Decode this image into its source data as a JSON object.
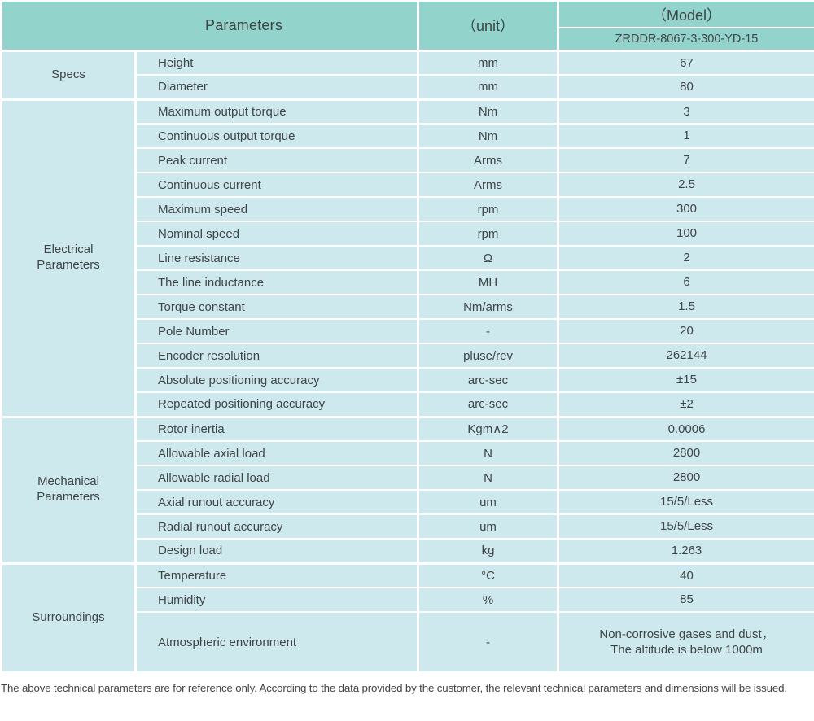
{
  "colors": {
    "header_bg": "#92d3cb",
    "body_bg": "#cde9ee",
    "border": "#ffffff",
    "text": "#3f4446"
  },
  "header": {
    "parameters_label": "Parameters",
    "unit_label": "（unit）",
    "model_label": "（Model）",
    "model_value": "ZRDDR-8067-3-300-YD-15"
  },
  "sections": [
    {
      "name": "Specs",
      "rows": [
        {
          "parameter": "Height",
          "unit": "mm",
          "value": "67"
        },
        {
          "parameter": "Diameter",
          "unit": "mm",
          "value": "80"
        }
      ]
    },
    {
      "name": "Electrical Parameters",
      "rows": [
        {
          "parameter": "Maximum output torque",
          "unit": "Nm",
          "value": "3"
        },
        {
          "parameter": "Continuous output torque",
          "unit": "Nm",
          "value": "1"
        },
        {
          "parameter": "Peak current",
          "unit": "Arms",
          "value": "7"
        },
        {
          "parameter": "Continuous current",
          "unit": "Arms",
          "value": "2.5"
        },
        {
          "parameter": "Maximum speed",
          "unit": "rpm",
          "value": "300"
        },
        {
          "parameter": "Nominal speed",
          "unit": "rpm",
          "value": "100"
        },
        {
          "parameter": "Line resistance",
          "unit": "Ω",
          "value": "2"
        },
        {
          "parameter": "The line inductance",
          "unit": "MH",
          "value": "6"
        },
        {
          "parameter": "Torque constant",
          "unit": "Nm/arms",
          "value": "1.5"
        },
        {
          "parameter": "Pole Number",
          "unit": "-",
          "value": "20"
        },
        {
          "parameter": "Encoder resolution",
          "unit": "pluse/rev",
          "value": "262144"
        },
        {
          "parameter": "Absolute positioning accuracy",
          "unit": "arc-sec",
          "value": "±15"
        },
        {
          "parameter": "Repeated positioning accuracy",
          "unit": "arc-sec",
          "value": "±2"
        }
      ]
    },
    {
      "name": "Mechanical Parameters",
      "rows": [
        {
          "parameter": "Rotor inertia",
          "unit": "Kgm∧2",
          "value": "0.0006"
        },
        {
          "parameter": "Allowable axial load",
          "unit": "N",
          "value": "2800"
        },
        {
          "parameter": "Allowable radial load",
          "unit": "N",
          "value": "2800"
        },
        {
          "parameter": "Axial runout accuracy",
          "unit": "um",
          "value": "15/5/Less"
        },
        {
          "parameter": "Radial runout accuracy",
          "unit": "um",
          "value": "15/5/Less"
        },
        {
          "parameter": "Design load",
          "unit": "kg",
          "value": "1.263"
        }
      ]
    },
    {
      "name": "Surroundings",
      "rows": [
        {
          "parameter": "Temperature",
          "unit": "°C",
          "value": "40"
        },
        {
          "parameter": "Humidity",
          "unit": "%",
          "value": "85"
        },
        {
          "parameter": "Atmospheric environment",
          "unit": "-",
          "value": [
            "Non-corrosive gases and dust，",
            "The altitude is below 1000m"
          ]
        }
      ]
    }
  ],
  "footer": {
    "note": "The above technical parameters are for reference only. According to the data provided by the customer, the relevant technical parameters and dimensions will be issued."
  }
}
